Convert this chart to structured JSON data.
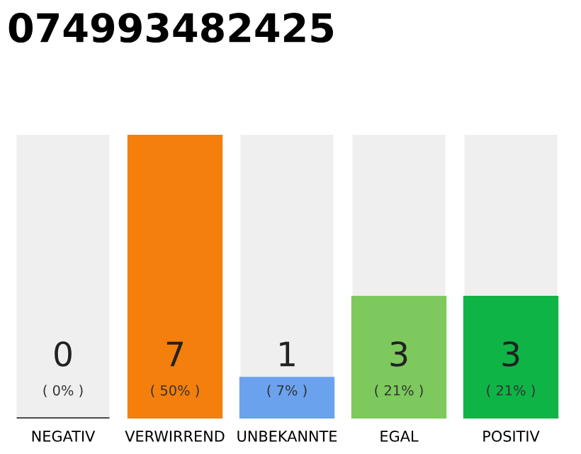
{
  "chart_data": {
    "type": "bar",
    "title": "074993482425",
    "categories": [
      "NEGATIV",
      "VERWIRREND",
      "UNBEKANNTE",
      "EGAL",
      "POSITIV"
    ],
    "values": [
      0,
      7,
      1,
      3,
      3
    ],
    "colors": [
      "#333333",
      "#f47f0c",
      "#6aa2ee",
      "#7dc95e",
      "#0fb446"
    ],
    "value_labels": [
      "0\n( 0% )",
      "7\n( 50% )",
      "1\n( 7% )",
      "3\n( 21% )",
      "3\n( 21% )"
    ],
    "grid": false,
    "legend": false
  }
}
